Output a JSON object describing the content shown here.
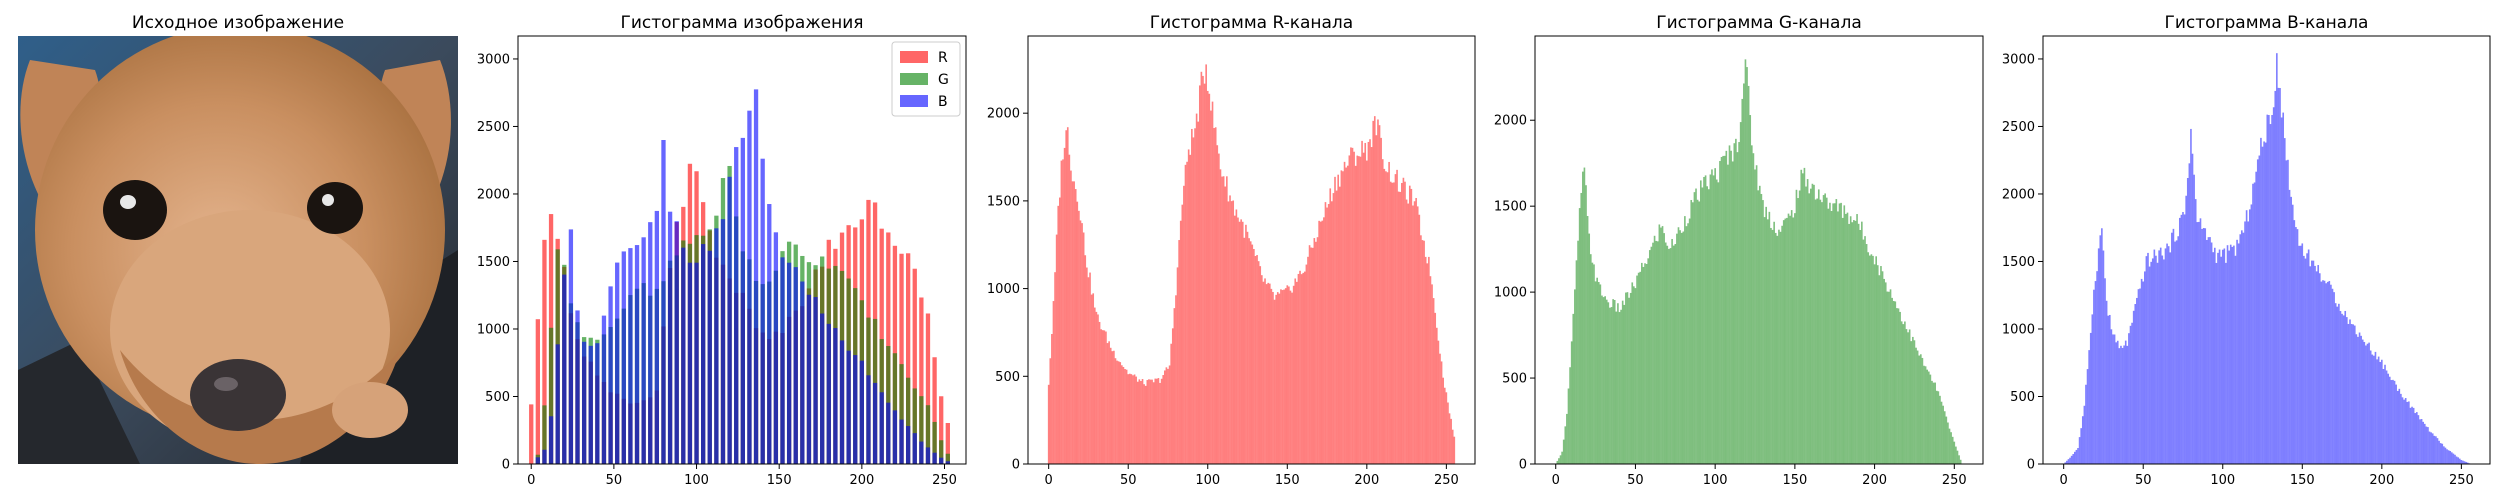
{
  "source_image": {
    "title": "Исходное изображение",
    "subject": "puppy-photo"
  },
  "colors": {
    "R": "#ff0000",
    "G": "#008000",
    "B": "#0000ff"
  },
  "chart_data": [
    {
      "type": "bar",
      "title": "Гистограмма изображения",
      "legend": [
        "R",
        "G",
        "B"
      ],
      "legend_position": "top-right",
      "xlim": [
        -8,
        263
      ],
      "ylim": [
        0,
        3170
      ],
      "xticks": [
        0,
        50,
        100,
        150,
        200,
        250
      ],
      "yticks": [
        0,
        500,
        1000,
        1500,
        2000,
        2500,
        3000
      ],
      "bin_step": 4,
      "series": [
        {
          "name": "R",
          "channel": "R",
          "color": "#ff0000",
          "alpha": 0.6,
          "points": [
            [
              0,
              460
            ],
            [
              3,
              900
            ],
            [
              6,
              1450
            ],
            [
              9,
              1800
            ],
            [
              12,
              1900
            ],
            [
              15,
              1650
            ],
            [
              19,
              1500
            ],
            [
              24,
              1150
            ],
            [
              30,
              850
            ],
            [
              40,
              650
            ],
            [
              50,
              520
            ],
            [
              60,
              460
            ],
            [
              70,
              480
            ],
            [
              76,
              560
            ],
            [
              80,
              1000
            ],
            [
              84,
              1500
            ],
            [
              88,
              1800
            ],
            [
              92,
              1900
            ],
            [
              96,
              2150
            ],
            [
              99,
              2280
            ],
            [
              103,
              2000
            ],
            [
              108,
              1700
            ],
            [
              115,
              1500
            ],
            [
              125,
              1300
            ],
            [
              135,
              1050
            ],
            [
              142,
              950
            ],
            [
              150,
              980
            ],
            [
              160,
              1100
            ],
            [
              170,
              1350
            ],
            [
              180,
              1600
            ],
            [
              190,
              1750
            ],
            [
              200,
              1800
            ],
            [
              206,
              1950
            ],
            [
              212,
              1700
            ],
            [
              220,
              1600
            ],
            [
              230,
              1500
            ],
            [
              240,
              1100
            ],
            [
              248,
              500
            ],
            [
              253,
              250
            ],
            [
              256,
              100
            ]
          ]
        },
        {
          "name": "G",
          "channel": "G",
          "color": "#008000",
          "alpha": 0.6,
          "points": [
            [
              0,
              0
            ],
            [
              4,
              70
            ],
            [
              7,
              300
            ],
            [
              10,
              700
            ],
            [
              13,
              1150
            ],
            [
              16,
              1600
            ],
            [
              18,
              1700
            ],
            [
              21,
              1300
            ],
            [
              26,
              1050
            ],
            [
              32,
              950
            ],
            [
              40,
              900
            ],
            [
              50,
              1050
            ],
            [
              60,
              1250
            ],
            [
              66,
              1380
            ],
            [
              72,
              1250
            ],
            [
              80,
              1400
            ],
            [
              88,
              1550
            ],
            [
              96,
              1650
            ],
            [
              102,
              1700
            ],
            [
              108,
              1800
            ],
            [
              114,
              1850
            ],
            [
              119,
              2350
            ],
            [
              124,
              1800
            ],
            [
              130,
              1500
            ],
            [
              140,
              1350
            ],
            [
              148,
              1450
            ],
            [
              155,
              1680
            ],
            [
              162,
              1600
            ],
            [
              170,
              1520
            ],
            [
              180,
              1480
            ],
            [
              190,
              1400
            ],
            [
              200,
              1200
            ],
            [
              210,
              1000
            ],
            [
              220,
              800
            ],
            [
              230,
              600
            ],
            [
              240,
              420
            ],
            [
              248,
              180
            ],
            [
              253,
              50
            ],
            [
              255,
              0
            ]
          ]
        },
        {
          "name": "B",
          "channel": "B",
          "color": "#0000ff",
          "alpha": 0.6,
          "points": [
            [
              0,
              0
            ],
            [
              5,
              60
            ],
            [
              9,
              120
            ],
            [
              13,
              420
            ],
            [
              17,
              1000
            ],
            [
              20,
              1400
            ],
            [
              24,
              1750
            ],
            [
              27,
              1200
            ],
            [
              30,
              1000
            ],
            [
              35,
              850
            ],
            [
              40,
              900
            ],
            [
              45,
              1150
            ],
            [
              52,
              1500
            ],
            [
              60,
              1550
            ],
            [
              66,
              1600
            ],
            [
              70,
              1700
            ],
            [
              76,
              1850
            ],
            [
              80,
              2450
            ],
            [
              84,
              1800
            ],
            [
              90,
              1700
            ],
            [
              96,
              1550
            ],
            [
              102,
              1550
            ],
            [
              108,
              1600
            ],
            [
              114,
              1750
            ],
            [
              120,
              2100
            ],
            [
              126,
              2450
            ],
            [
              131,
              2550
            ],
            [
              134,
              3020
            ],
            [
              139,
              2400
            ],
            [
              145,
              1800
            ],
            [
              150,
              1600
            ],
            [
              156,
              1500
            ],
            [
              162,
              1400
            ],
            [
              170,
              1250
            ],
            [
              180,
              1050
            ],
            [
              190,
              900
            ],
            [
              200,
              750
            ],
            [
              210,
              560
            ],
            [
              220,
              400
            ],
            [
              230,
              250
            ],
            [
              240,
              120
            ],
            [
              250,
              30
            ],
            [
              256,
              0
            ]
          ]
        }
      ]
    },
    {
      "type": "bar",
      "title": "Гистограмма R-канала",
      "xlim": [
        -13,
        268
      ],
      "ylim": [
        0,
        2440
      ],
      "xticks": [
        0,
        50,
        100,
        150,
        200,
        250
      ],
      "yticks": [
        0,
        500,
        1000,
        1500,
        2000
      ],
      "bin_step": 1,
      "series": [
        {
          "channel": "R",
          "color": "#ff0000",
          "alpha": 0.5,
          "points": [
            [
              0,
              460
            ],
            [
              3,
              900
            ],
            [
              6,
              1450
            ],
            [
              9,
              1800
            ],
            [
              12,
              1900
            ],
            [
              15,
              1650
            ],
            [
              19,
              1500
            ],
            [
              24,
              1150
            ],
            [
              30,
              850
            ],
            [
              40,
              650
            ],
            [
              50,
              520
            ],
            [
              60,
              460
            ],
            [
              70,
              480
            ],
            [
              76,
              560
            ],
            [
              80,
              1000
            ],
            [
              84,
              1500
            ],
            [
              88,
              1800
            ],
            [
              92,
              1900
            ],
            [
              96,
              2150
            ],
            [
              99,
              2280
            ],
            [
              103,
              2000
            ],
            [
              108,
              1700
            ],
            [
              115,
              1500
            ],
            [
              125,
              1300
            ],
            [
              135,
              1050
            ],
            [
              142,
              950
            ],
            [
              150,
              980
            ],
            [
              160,
              1100
            ],
            [
              170,
              1350
            ],
            [
              180,
              1600
            ],
            [
              190,
              1750
            ],
            [
              200,
              1800
            ],
            [
              206,
              1950
            ],
            [
              212,
              1700
            ],
            [
              220,
              1600
            ],
            [
              230,
              1500
            ],
            [
              240,
              1100
            ],
            [
              248,
              500
            ],
            [
              253,
              250
            ],
            [
              256,
              100
            ]
          ]
        }
      ]
    },
    {
      "type": "bar",
      "title": "Гистограмма G-канала",
      "xlim": [
        -13,
        268
      ],
      "ylim": [
        0,
        2490
      ],
      "xticks": [
        0,
        50,
        100,
        150,
        200,
        250
      ],
      "yticks": [
        0,
        500,
        1000,
        1500,
        2000
      ],
      "bin_step": 1,
      "series": [
        {
          "channel": "G",
          "color": "#008000",
          "alpha": 0.5,
          "points": [
            [
              0,
              0
            ],
            [
              4,
              70
            ],
            [
              7,
              300
            ],
            [
              10,
              700
            ],
            [
              13,
              1150
            ],
            [
              16,
              1600
            ],
            [
              18,
              1700
            ],
            [
              21,
              1300
            ],
            [
              26,
              1050
            ],
            [
              32,
              950
            ],
            [
              40,
              900
            ],
            [
              50,
              1050
            ],
            [
              60,
              1250
            ],
            [
              66,
              1380
            ],
            [
              72,
              1250
            ],
            [
              80,
              1400
            ],
            [
              88,
              1550
            ],
            [
              96,
              1650
            ],
            [
              102,
              1700
            ],
            [
              108,
              1800
            ],
            [
              114,
              1850
            ],
            [
              119,
              2350
            ],
            [
              124,
              1800
            ],
            [
              130,
              1500
            ],
            [
              140,
              1350
            ],
            [
              148,
              1450
            ],
            [
              155,
              1680
            ],
            [
              162,
              1600
            ],
            [
              170,
              1520
            ],
            [
              180,
              1480
            ],
            [
              190,
              1400
            ],
            [
              200,
              1200
            ],
            [
              210,
              1000
            ],
            [
              220,
              800
            ],
            [
              230,
              600
            ],
            [
              240,
              420
            ],
            [
              248,
              180
            ],
            [
              253,
              50
            ],
            [
              255,
              0
            ]
          ]
        }
      ]
    },
    {
      "type": "bar",
      "title": "Гистограмма B-канала",
      "xlim": [
        -13,
        268
      ],
      "ylim": [
        0,
        3170
      ],
      "xticks": [
        0,
        50,
        100,
        150,
        200,
        250
      ],
      "yticks": [
        0,
        500,
        1000,
        1500,
        2000,
        2500,
        3000
      ],
      "bin_step": 1,
      "series": [
        {
          "channel": "B",
          "color": "#0000ff",
          "alpha": 0.5,
          "points": [
            [
              0,
              0
            ],
            [
              5,
              60
            ],
            [
              9,
              120
            ],
            [
              13,
              420
            ],
            [
              17,
              1000
            ],
            [
              20,
              1400
            ],
            [
              24,
              1750
            ],
            [
              27,
              1200
            ],
            [
              30,
              1000
            ],
            [
              35,
              850
            ],
            [
              40,
              900
            ],
            [
              45,
              1150
            ],
            [
              52,
              1500
            ],
            [
              60,
              1550
            ],
            [
              66,
              1600
            ],
            [
              70,
              1700
            ],
            [
              76,
              1850
            ],
            [
              80,
              2450
            ],
            [
              84,
              1800
            ],
            [
              90,
              1700
            ],
            [
              96,
              1550
            ],
            [
              102,
              1550
            ],
            [
              108,
              1600
            ],
            [
              114,
              1750
            ],
            [
              120,
              2100
            ],
            [
              126,
              2450
            ],
            [
              131,
              2550
            ],
            [
              134,
              3020
            ],
            [
              139,
              2400
            ],
            [
              145,
              1800
            ],
            [
              150,
              1600
            ],
            [
              156,
              1500
            ],
            [
              162,
              1400
            ],
            [
              170,
              1250
            ],
            [
              180,
              1050
            ],
            [
              190,
              900
            ],
            [
              200,
              750
            ],
            [
              210,
              560
            ],
            [
              220,
              400
            ],
            [
              230,
              250
            ],
            [
              240,
              120
            ],
            [
              250,
              30
            ],
            [
              256,
              0
            ]
          ]
        }
      ]
    }
  ]
}
